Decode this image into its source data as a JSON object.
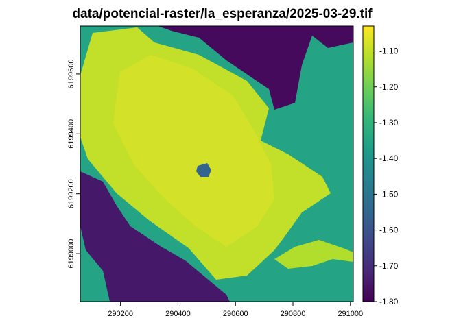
{
  "title": "data/potencial-raster/la_esperanza/2025-03-29.tif",
  "chart_data": {
    "type": "heatmap",
    "title": "data/potencial-raster/la_esperanza/2025-03-29.tif",
    "xlabel": "",
    "ylabel": "",
    "xlim": [
      290060,
      291010
    ],
    "ylim": [
      6198840,
      6199760
    ],
    "x_ticks": [
      290200,
      290400,
      290600,
      290800,
      291000
    ],
    "x_tick_labels": [
      "290200",
      "290400",
      "290600",
      "290800",
      "291000"
    ],
    "y_ticks": [
      6199000,
      6199200,
      6199400,
      6199600
    ],
    "y_tick_labels": [
      "6199000",
      "6199200",
      "6199400",
      "6199600"
    ],
    "colorbar": {
      "palette": "viridis",
      "range": [
        -1.8,
        -1.03
      ],
      "ticks": [
        -1.1,
        -1.2,
        -1.3,
        -1.4,
        -1.5,
        -1.6,
        -1.7,
        -1.8
      ],
      "tick_labels": [
        "-1.10",
        "-1.20",
        "-1.30",
        "-1.40",
        "-1.50",
        "-1.60",
        "-1.70",
        "-1.80"
      ],
      "colors": [
        "#440154",
        "#482878",
        "#3e4989",
        "#31688e",
        "#26828e",
        "#1f9e89",
        "#35b779",
        "#6ece58",
        "#b5de2b",
        "#fde725"
      ]
    },
    "regions": [
      {
        "name": "background",
        "value": -1.35
      },
      {
        "name": "central-field",
        "value": -1.1
      },
      {
        "name": "central-field-core",
        "value": -1.08
      },
      {
        "name": "northeast-dark",
        "value": -1.78
      },
      {
        "name": "southwest-dark",
        "value": -1.75
      },
      {
        "name": "field-center-spot",
        "value": -1.55
      },
      {
        "name": "southeast-strip",
        "value": -1.12
      }
    ]
  }
}
